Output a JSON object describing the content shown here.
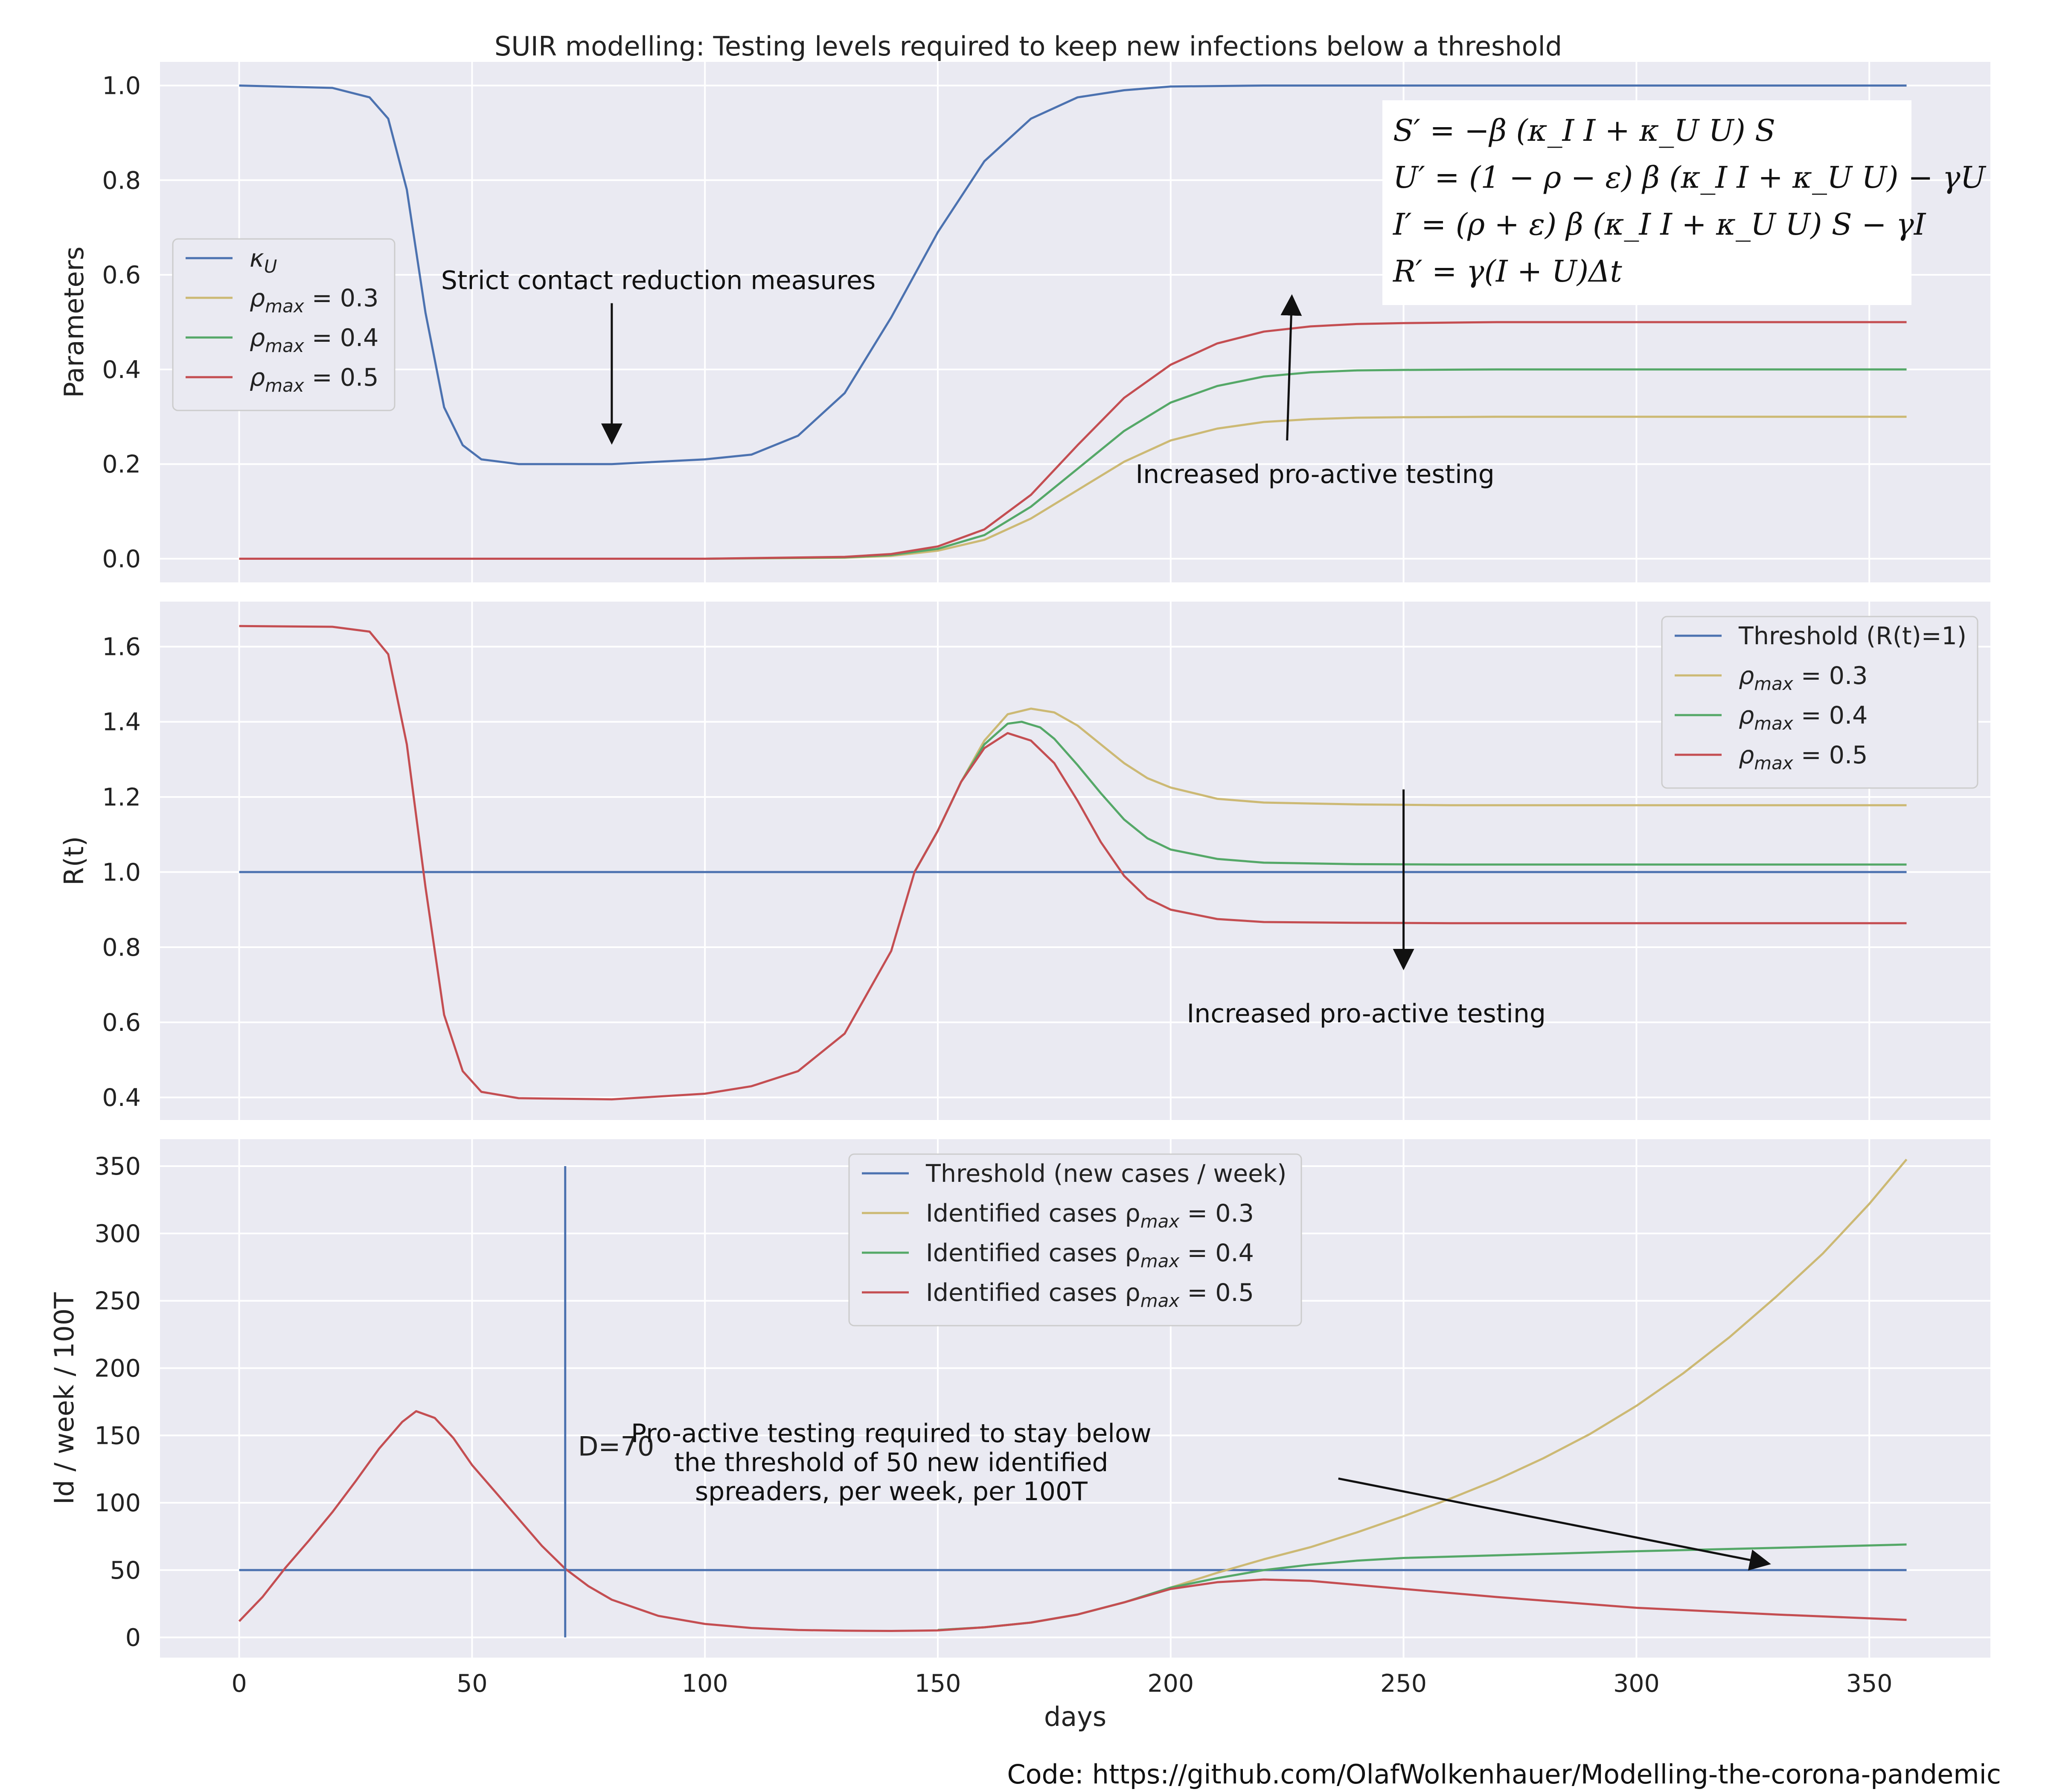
{
  "title": "SUIR modelling: Testing levels required to keep new infections below a threshold",
  "footer": "Code: https://github.com/OlafWolkenhauer/Modelling-the-corona-pandemic",
  "colors": {
    "background": "#eaeaf2",
    "grid": "#ffffff",
    "blue": "#4c72b0",
    "gold": "#ccb974",
    "green": "#55a868",
    "red": "#c44e52"
  },
  "equations": [
    "S′ = −β (κ_I I + κ_U U) S",
    "U′ = (1 − ρ − ε) β (κ_I I + κ_U U) − γU",
    "I′ = (ρ + ε) β (κ_I I + κ_U U) S − γI",
    "R′ = γ(I + U)Δt"
  ],
  "chart_data": [
    {
      "type": "line",
      "ylabel": "Parameters",
      "xlim": [
        -17,
        376
      ],
      "ylim": [
        -0.05,
        1.05
      ],
      "yticks": [
        "0.0",
        "0.2",
        "0.4",
        "0.6",
        "0.8",
        "1.0"
      ],
      "grid": true,
      "legend": {
        "placement": "center-left",
        "entries": [
          {
            "label": "κ",
            "sub": "U",
            "suffix": "",
            "color": "blue"
          },
          {
            "label": "ρ",
            "sub": "max",
            "suffix": " = 0.3",
            "color": "gold"
          },
          {
            "label": "ρ",
            "sub": "max",
            "suffix": " = 0.4",
            "color": "green"
          },
          {
            "label": "ρ",
            "sub": "max",
            "suffix": " = 0.5",
            "color": "red"
          }
        ]
      },
      "series": [
        {
          "name": "κU",
          "color": "blue",
          "x": [
            0,
            20,
            28,
            32,
            36,
            40,
            44,
            48,
            52,
            60,
            80,
            100,
            110,
            120,
            130,
            140,
            150,
            160,
            170,
            180,
            190,
            200,
            220,
            250,
            300,
            358
          ],
          "y": [
            1.0,
            0.995,
            0.975,
            0.93,
            0.78,
            0.52,
            0.32,
            0.24,
            0.21,
            0.2,
            0.2,
            0.21,
            0.22,
            0.26,
            0.35,
            0.51,
            0.69,
            0.84,
            0.93,
            0.975,
            0.99,
            0.998,
            1.0,
            1.0,
            1.0,
            1.0
          ]
        },
        {
          "name": "ρmax = 0.3",
          "color": "gold",
          "x": [
            0,
            100,
            130,
            140,
            150,
            160,
            170,
            180,
            190,
            200,
            210,
            220,
            230,
            240,
            250,
            270,
            300,
            358
          ],
          "y": [
            0.0,
            0.0,
            0.002,
            0.006,
            0.017,
            0.04,
            0.085,
            0.145,
            0.205,
            0.25,
            0.275,
            0.289,
            0.295,
            0.298,
            0.299,
            0.3,
            0.3,
            0.3
          ]
        },
        {
          "name": "ρmax = 0.4",
          "color": "green",
          "x": [
            0,
            100,
            130,
            140,
            150,
            160,
            170,
            180,
            190,
            200,
            210,
            220,
            230,
            240,
            250,
            270,
            300,
            358
          ],
          "y": [
            0.0,
            0.0,
            0.003,
            0.008,
            0.021,
            0.05,
            0.11,
            0.19,
            0.27,
            0.33,
            0.365,
            0.385,
            0.394,
            0.398,
            0.399,
            0.4,
            0.4,
            0.4
          ]
        },
        {
          "name": "ρmax = 0.5",
          "color": "red",
          "x": [
            0,
            100,
            130,
            140,
            150,
            160,
            170,
            180,
            190,
            200,
            210,
            220,
            230,
            240,
            250,
            270,
            300,
            358
          ],
          "y": [
            0.0,
            0.0,
            0.004,
            0.01,
            0.026,
            0.062,
            0.135,
            0.24,
            0.34,
            0.41,
            0.455,
            0.48,
            0.491,
            0.496,
            0.498,
            0.5,
            0.5,
            0.5
          ]
        }
      ],
      "annotations": [
        {
          "text": "Strict contact reduction measures",
          "x": 90,
          "y": 0.57,
          "arrow_from": [
            80,
            0.54
          ],
          "arrow_to": [
            80,
            0.25
          ]
        },
        {
          "text": "Increased pro-active testing",
          "x": 231,
          "y": 0.16,
          "arrow_from": [
            225,
            0.25
          ],
          "arrow_to": [
            226,
            0.55
          ]
        }
      ]
    },
    {
      "type": "line",
      "ylabel": "R(t)",
      "xlim": [
        -17,
        376
      ],
      "ylim": [
        0.34,
        1.72
      ],
      "yticks": [
        "0.4",
        "0.6",
        "0.8",
        "1.0",
        "1.2",
        "1.4",
        "1.6"
      ],
      "grid": true,
      "legend": {
        "placement": "top-right",
        "entries": [
          {
            "label": "Threshold (R(t)=1)",
            "sub": "",
            "suffix": "",
            "color": "blue"
          },
          {
            "label": "ρ",
            "sub": "max",
            "suffix": " = 0.3",
            "color": "gold"
          },
          {
            "label": "ρ",
            "sub": "max",
            "suffix": " = 0.4",
            "color": "green"
          },
          {
            "label": "ρ",
            "sub": "max",
            "suffix": " = 0.5",
            "color": "red"
          }
        ]
      },
      "series": [
        {
          "name": "Threshold (R(t)=1)",
          "color": "blue",
          "x": [
            0,
            358
          ],
          "y": [
            1.0,
            1.0
          ]
        },
        {
          "name": "ρmax = 0.3",
          "color": "gold",
          "x": [
            145,
            150,
            155,
            160,
            165,
            170,
            175,
            180,
            185,
            190,
            195,
            200,
            210,
            220,
            240,
            260,
            300,
            358
          ],
          "y": [
            1.0,
            1.11,
            1.24,
            1.35,
            1.42,
            1.435,
            1.425,
            1.39,
            1.34,
            1.29,
            1.25,
            1.225,
            1.195,
            1.185,
            1.18,
            1.178,
            1.178,
            1.178
          ]
        },
        {
          "name": "ρmax = 0.4",
          "color": "green",
          "x": [
            145,
            150,
            155,
            160,
            165,
            168,
            172,
            175,
            180,
            185,
            190,
            195,
            200,
            210,
            220,
            240,
            260,
            300,
            358
          ],
          "y": [
            1.0,
            1.11,
            1.24,
            1.34,
            1.395,
            1.4,
            1.385,
            1.355,
            1.285,
            1.21,
            1.14,
            1.09,
            1.06,
            1.035,
            1.025,
            1.021,
            1.02,
            1.02,
            1.02
          ]
        },
        {
          "name": "ρmax = 0.5",
          "color": "red",
          "x": [
            0,
            20,
            28,
            32,
            36,
            40,
            44,
            48,
            52,
            60,
            80,
            100,
            110,
            120,
            130,
            140,
            145,
            150,
            155,
            160,
            165,
            170,
            175,
            180,
            185,
            190,
            195,
            200,
            210,
            220,
            240,
            260,
            300,
            358
          ],
          "y": [
            1.655,
            1.653,
            1.64,
            1.58,
            1.34,
            0.96,
            0.62,
            0.47,
            0.415,
            0.398,
            0.395,
            0.41,
            0.43,
            0.47,
            0.57,
            0.79,
            1.0,
            1.11,
            1.24,
            1.33,
            1.37,
            1.35,
            1.29,
            1.19,
            1.08,
            0.99,
            0.93,
            0.9,
            0.875,
            0.867,
            0.865,
            0.864,
            0.864,
            0.864
          ]
        }
      ],
      "annotations": [
        {
          "text": "Increased pro-active testing",
          "x": 242,
          "y": 0.6,
          "arrow_from": [
            250,
            1.22
          ],
          "arrow_to": [
            250,
            0.75
          ]
        }
      ]
    },
    {
      "type": "line",
      "ylabel": "Id / week / 100T",
      "xlabel": "days",
      "xlim": [
        -17,
        376
      ],
      "ylim": [
        -15,
        370
      ],
      "xticks": [
        "0",
        "50",
        "100",
        "150",
        "200",
        "250",
        "300",
        "350"
      ],
      "yticks": [
        "0",
        "50",
        "100",
        "150",
        "200",
        "250",
        "300",
        "350"
      ],
      "grid": true,
      "legend": {
        "placement": "top-center",
        "entries": [
          {
            "label": "Threshold (new cases / week)",
            "sub": "",
            "suffix": "",
            "color": "blue"
          },
          {
            "label": "Identified cases ρ",
            "sub": "max",
            "suffix": " = 0.3",
            "color": "gold"
          },
          {
            "label": "Identified cases ρ",
            "sub": "max",
            "suffix": " = 0.4",
            "color": "green"
          },
          {
            "label": "Identified cases ρ",
            "sub": "max",
            "suffix": " = 0.5",
            "color": "red"
          }
        ]
      },
      "series": [
        {
          "name": "Threshold (new cases / week)",
          "color": "blue",
          "x": [
            0,
            358
          ],
          "y": [
            50,
            50
          ]
        },
        {
          "name": "Identified cases ρmax = 0.3",
          "color": "gold",
          "x": [
            150,
            160,
            170,
            180,
            190,
            200,
            210,
            220,
            230,
            240,
            250,
            260,
            270,
            280,
            290,
            300,
            310,
            320,
            330,
            340,
            350,
            358
          ],
          "y": [
            5.5,
            7.5,
            11,
            17,
            26,
            37,
            48,
            58,
            67,
            78,
            90,
            103,
            117,
            133,
            151,
            172,
            196,
            223,
            253,
            285,
            322,
            355
          ]
        },
        {
          "name": "Identified cases ρmax = 0.4",
          "color": "green",
          "x": [
            150,
            160,
            170,
            180,
            190,
            200,
            210,
            220,
            230,
            240,
            250,
            270,
            300,
            330,
            358
          ],
          "y": [
            5.5,
            7.5,
            11,
            17,
            26,
            37,
            44,
            50,
            54,
            57,
            59,
            61,
            64,
            66.5,
            69
          ]
        },
        {
          "name": "Identified cases ρmax = 0.5",
          "color": "red",
          "x": [
            0,
            5,
            10,
            15,
            20,
            25,
            30,
            35,
            38,
            42,
            46,
            50,
            55,
            60,
            65,
            70,
            75,
            80,
            90,
            100,
            110,
            120,
            130,
            140,
            150,
            160,
            170,
            180,
            190,
            200,
            210,
            220,
            230,
            240,
            250,
            270,
            300,
            330,
            358
          ],
          "y": [
            12,
            30,
            52,
            72,
            93,
            116,
            140,
            160,
            168,
            163,
            148,
            128,
            108,
            88,
            68,
            51,
            38,
            28,
            16,
            10,
            7,
            5.5,
            5,
            4.8,
            5.2,
            7.5,
            11,
            17,
            26,
            36,
            41,
            43,
            42,
            39,
            36,
            30,
            22,
            17,
            13
          ]
        }
      ],
      "markers": [
        {
          "type": "vline",
          "x": 70,
          "y_from": 0,
          "y_to": 350,
          "color": "blue",
          "label": "D=70"
        }
      ],
      "annotations": [
        {
          "lines": [
            "Pro-active testing required to stay below",
            "the threshold of 50 new identified",
            "spreaders, per week, per 100T"
          ],
          "x": 140,
          "y": 145,
          "arrow_from": [
            236,
            118
          ],
          "arrow_to": [
            328,
            55
          ]
        }
      ]
    }
  ]
}
